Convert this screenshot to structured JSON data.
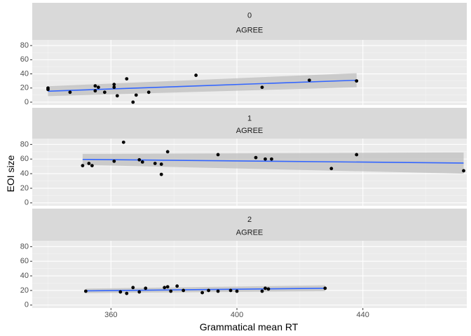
{
  "chart_data": {
    "type": "scatter",
    "xlabel": "Grammatical mean RT",
    "ylabel": "EOI size",
    "xlim": [
      335,
      473
    ],
    "ylim": [
      -4,
      88
    ],
    "x_ticks": [
      360,
      400,
      440
    ],
    "y_ticks": [
      0,
      20,
      40,
      60,
      80
    ],
    "x_tick_labels": [
      "360",
      "400",
      "440"
    ],
    "y_tick_labels": [
      "0",
      "20",
      "40",
      "60",
      "80"
    ],
    "grid": true,
    "smooth": "lm with confidence band",
    "panel_background": "#ebebeb",
    "strip_background": "#d9d9d9",
    "point_color": "#000000",
    "line_color": "#3366ff",
    "band_color": "#bfbfbf",
    "panels": [
      {
        "strip_top": "0",
        "strip_bottom": "AGREE",
        "points": [
          [
            340,
            18
          ],
          [
            340,
            20
          ],
          [
            347,
            14
          ],
          [
            355,
            23
          ],
          [
            355,
            16
          ],
          [
            356,
            21
          ],
          [
            358,
            14
          ],
          [
            361,
            21
          ],
          [
            361,
            25
          ],
          [
            362,
            9
          ],
          [
            365,
            33
          ],
          [
            367,
            0
          ],
          [
            368,
            10
          ],
          [
            372,
            14
          ],
          [
            387,
            38
          ],
          [
            408,
            21
          ],
          [
            423,
            31
          ],
          [
            438,
            30
          ]
        ],
        "fit": {
          "x": [
            340,
            438
          ],
          "y": [
            15.5,
            31
          ]
        },
        "band_upper": [
          22.5,
          41
        ],
        "band_lower": [
          8.5,
          21
        ]
      },
      {
        "strip_top": "1",
        "strip_bottom": "AGREE",
        "points": [
          [
            351,
            51
          ],
          [
            353,
            54
          ],
          [
            354,
            51
          ],
          [
            361,
            57
          ],
          [
            364,
            83
          ],
          [
            369,
            59
          ],
          [
            370,
            56
          ],
          [
            374,
            54
          ],
          [
            376,
            39
          ],
          [
            376,
            53
          ],
          [
            378,
            70
          ],
          [
            394,
            66
          ],
          [
            406,
            62
          ],
          [
            409,
            60
          ],
          [
            411,
            60
          ],
          [
            430,
            47
          ],
          [
            438,
            66
          ],
          [
            472,
            44
          ]
        ],
        "fit": {
          "x": [
            351,
            472
          ],
          "y": [
            59.5,
            54.5
          ]
        },
        "band_upper": [
          67,
          69
        ],
        "band_lower": [
          52,
          40
        ]
      },
      {
        "strip_top": "2",
        "strip_bottom": "AGREE",
        "points": [
          [
            352,
            19
          ],
          [
            363,
            18
          ],
          [
            365,
            16
          ],
          [
            367,
            24
          ],
          [
            369,
            18
          ],
          [
            371,
            23
          ],
          [
            377,
            24
          ],
          [
            378,
            25
          ],
          [
            379,
            19
          ],
          [
            381,
            26
          ],
          [
            383,
            20
          ],
          [
            389,
            17
          ],
          [
            391,
            20
          ],
          [
            394,
            19
          ],
          [
            398,
            20
          ],
          [
            400,
            19
          ],
          [
            408,
            19
          ],
          [
            409,
            23
          ],
          [
            410,
            22
          ],
          [
            428,
            23
          ]
        ],
        "fit": {
          "x": [
            352,
            428
          ],
          "y": [
            19.5,
            23
          ]
        },
        "band_upper": [
          22.5,
          27
        ],
        "band_lower": [
          16.5,
          19
        ]
      }
    ]
  }
}
